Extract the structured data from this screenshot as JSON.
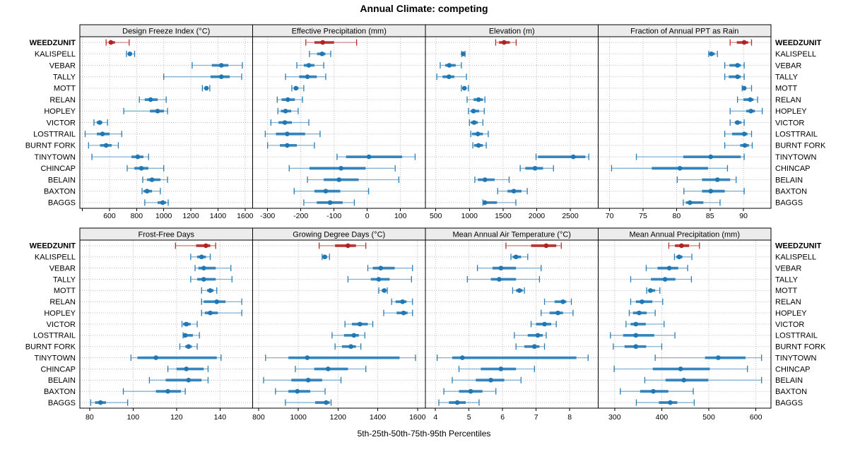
{
  "title": "Annual Climate: competing",
  "caption": "5th-25th-50th-75th-95th Percentiles",
  "highlight_station": "WEEDZUNIT",
  "stations": [
    "WEEDZUNIT",
    "KALISPELL",
    "VEBAR",
    "TALLY",
    "MOTT",
    "RELAN",
    "HOPLEY",
    "VICTOR",
    "LOSTTRAIL",
    "BURNT FORK",
    "TINYTOWN",
    "CHINCAP",
    "BELAIN",
    "BAXTON",
    "BAGGS"
  ],
  "percentile_labels": [
    "5th",
    "25th",
    "50th",
    "75th",
    "95th"
  ],
  "colors": {
    "series": "#1f77b4",
    "highlight": "#b22222",
    "strip_bg": "#ececec",
    "panel_border": "#000000",
    "grid": "#bdbdbd",
    "text": "#000000"
  },
  "chart_data": [
    {
      "type": "dot-whisker",
      "title": "Design Freeze Index (°C)",
      "xlim": [
        381,
        1656
      ],
      "xticks": [
        400,
        600,
        800,
        1000,
        1200,
        1400,
        1600
      ],
      "xtick_labels": [
        "",
        "600",
        "800",
        "1000",
        "1200",
        "1400",
        "1600"
      ],
      "percentiles": [
        [
          575,
          595,
          610,
          640,
          745
        ],
        [
          725,
          740,
          750,
          757,
          785
        ],
        [
          1210,
          1355,
          1425,
          1477,
          1580
        ],
        [
          1000,
          1345,
          1425,
          1487,
          1575
        ],
        [
          1285,
          1303,
          1315,
          1327,
          1340
        ],
        [
          820,
          860,
          903,
          955,
          1018
        ],
        [
          705,
          898,
          955,
          1002,
          1028
        ],
        [
          485,
          505,
          527,
          547,
          585
        ],
        [
          420,
          506,
          548,
          600,
          690
        ],
        [
          445,
          530,
          575,
          616,
          665
        ],
        [
          470,
          762,
          808,
          850,
          888
        ],
        [
          730,
          783,
          835,
          887,
          1000
        ],
        [
          845,
          877,
          913,
          976,
          1028
        ],
        [
          840,
          851,
          877,
          913,
          975
        ],
        [
          860,
          955,
          992,
          1018,
          1033
        ]
      ]
    },
    {
      "type": "dot-whisker",
      "title": "Effective Precipitation (mm)",
      "xlim": [
        -345,
        175
      ],
      "xticks": [
        -300,
        -200,
        -100,
        0,
        100
      ],
      "xtick_labels": [
        "-300",
        "-200",
        "-100",
        "0",
        "100"
      ],
      "percentiles": [
        [
          -185,
          -159,
          -134,
          -100,
          -32
        ],
        [
          -174,
          -151,
          -136,
          -126,
          -110
        ],
        [
          -212,
          -191,
          -176,
          -159,
          -131
        ],
        [
          -246,
          -205,
          -180,
          -152,
          -125
        ],
        [
          -227,
          -220,
          -215,
          -207,
          -191
        ],
        [
          -271,
          -258,
          -239,
          -218,
          -195
        ],
        [
          -269,
          -260,
          -246,
          -229,
          -208
        ],
        [
          -290,
          -267,
          -248,
          -227,
          -176
        ],
        [
          -307,
          -275,
          -241,
          -187,
          -142
        ],
        [
          -300,
          -263,
          -241,
          -212,
          -159
        ],
        [
          -91,
          -64,
          5,
          105,
          144
        ],
        [
          -235,
          -174,
          -79,
          -5,
          84
        ],
        [
          -180,
          -131,
          -85,
          -26,
          95
        ],
        [
          -220,
          -159,
          -125,
          -81,
          4
        ],
        [
          -191,
          -152,
          -112,
          -74,
          -39
        ]
      ]
    },
    {
      "type": "dot-whisker",
      "title": "Elevation (m)",
      "xlim": [
        345,
        2915
      ],
      "xticks": [
        500,
        1000,
        1500,
        2000,
        2500
      ],
      "xtick_labels": [
        "500",
        "1000",
        "1500",
        "2000",
        "2500"
      ],
      "percentiles": [
        [
          1390,
          1440,
          1515,
          1600,
          1695
        ],
        [
          885,
          895,
          905,
          915,
          935
        ],
        [
          565,
          640,
          700,
          795,
          880
        ],
        [
          515,
          600,
          695,
          775,
          955
        ],
        [
          880,
          905,
          925,
          945,
          985
        ],
        [
          965,
          1060,
          1135,
          1200,
          1230
        ],
        [
          985,
          1020,
          1060,
          1145,
          1220
        ],
        [
          1000,
          1020,
          1070,
          1125,
          1200
        ],
        [
          1020,
          1040,
          1125,
          1200,
          1280
        ],
        [
          1050,
          1070,
          1135,
          1200,
          1250
        ],
        [
          1990,
          2020,
          2545,
          2725,
          2775
        ],
        [
          1755,
          1830,
          1975,
          2095,
          2250
        ],
        [
          1080,
          1125,
          1230,
          1375,
          1590
        ],
        [
          1420,
          1565,
          1660,
          1775,
          1860
        ],
        [
          1200,
          1210,
          1230,
          1410,
          1690
        ]
      ]
    },
    {
      "type": "dot-whisker",
      "title": "Fraction of Annual PPT as Rain",
      "xlim": [
        68.3,
        94.1
      ],
      "xticks": [
        70,
        75,
        80,
        85,
        90
      ],
      "xtick_labels": [
        "70",
        "75",
        "80",
        "85",
        "90"
      ],
      "percentiles": [
        [
          88.0,
          89.0,
          90.1,
          90.7,
          91.2
        ],
        [
          84.8,
          85.0,
          85.2,
          85.7,
          86.1
        ],
        [
          87.2,
          87.9,
          89.1,
          89.6,
          90.1
        ],
        [
          87.2,
          87.8,
          89.1,
          89.6,
          90.1
        ],
        [
          89.8,
          90.0,
          90.1,
          90.4,
          91.2
        ],
        [
          89.1,
          90.0,
          91.0,
          91.5,
          92.1
        ],
        [
          88.0,
          90.4,
          91.1,
          91.7,
          92.8
        ],
        [
          88.0,
          88.7,
          89.1,
          89.7,
          90.1
        ],
        [
          87.2,
          88.3,
          90.1,
          90.6,
          91.2
        ],
        [
          87.2,
          89.5,
          90.2,
          90.8,
          91.3
        ],
        [
          74.0,
          81.0,
          85.1,
          89.6,
          90.1
        ],
        [
          70.3,
          76.3,
          80.5,
          84.7,
          87.6
        ],
        [
          80.1,
          83.8,
          86.1,
          88.0,
          88.9
        ],
        [
          81.1,
          83.8,
          85.1,
          87.2,
          90.1
        ],
        [
          81.0,
          81.4,
          82.0,
          84.0,
          86.5
        ]
      ]
    },
    {
      "type": "dot-whisker",
      "title": "Frost-Free Days",
      "xlim": [
        75.5,
        155
      ],
      "xticks": [
        80,
        100,
        120,
        140
      ],
      "xtick_labels": [
        "80",
        "100",
        "120",
        "140"
      ],
      "percentiles": [
        [
          119.5,
          129,
          133.5,
          135.5,
          138
        ],
        [
          126.5,
          129.5,
          131.5,
          133.5,
          135.5
        ],
        [
          128.5,
          130,
          132.5,
          138,
          145
        ],
        [
          126.5,
          129.5,
          132.5,
          138,
          145.5
        ],
        [
          131.5,
          134,
          135.5,
          137,
          138.5
        ],
        [
          131.5,
          132.5,
          138.5,
          142.5,
          150
        ],
        [
          131.5,
          133,
          135.5,
          139,
          150
        ],
        [
          122.5,
          123,
          124.5,
          126.5,
          129.5
        ],
        [
          123,
          123.5,
          124,
          127.5,
          130.5
        ],
        [
          121.5,
          124,
          125.5,
          127,
          129.5
        ],
        [
          99,
          102,
          110.5,
          138.5,
          140.5
        ],
        [
          116,
          120,
          124.5,
          132.5,
          134.5
        ],
        [
          107.5,
          115,
          125.5,
          131.5,
          134.5
        ],
        [
          95.5,
          110.5,
          116,
          122,
          124
        ],
        [
          80.5,
          82.5,
          85,
          87.5,
          97.5
        ]
      ]
    },
    {
      "type": "dot-whisker",
      "title": "Growing Degree Days (°C)",
      "xlim": [
        770,
        1640
      ],
      "xticks": [
        800,
        1000,
        1200,
        1400,
        1600
      ],
      "xtick_labels": [
        "800",
        "1000",
        "1200",
        "1400",
        "1600"
      ],
      "percentiles": [
        [
          1105,
          1185,
          1250,
          1290,
          1340
        ],
        [
          1120,
          1127,
          1133,
          1145,
          1157
        ],
        [
          1350,
          1375,
          1415,
          1485,
          1575
        ],
        [
          1250,
          1365,
          1405,
          1460,
          1570
        ],
        [
          1405,
          1420,
          1433,
          1440,
          1448
        ],
        [
          1470,
          1490,
          1525,
          1545,
          1575
        ],
        [
          1430,
          1495,
          1530,
          1550,
          1575
        ],
        [
          1235,
          1270,
          1310,
          1350,
          1375
        ],
        [
          1170,
          1230,
          1280,
          1305,
          1335
        ],
        [
          1185,
          1220,
          1265,
          1290,
          1315
        ],
        [
          835,
          950,
          1045,
          1510,
          1590
        ],
        [
          985,
          1080,
          1150,
          1250,
          1340
        ],
        [
          825,
          965,
          1050,
          1120,
          1215
        ],
        [
          885,
          950,
          995,
          1060,
          1135
        ],
        [
          935,
          1085,
          1140,
          1158,
          1165
        ]
      ]
    },
    {
      "type": "dot-whisker",
      "title": "Mean Annual Air Temperature (°C)",
      "xlim": [
        3.7,
        8.85
      ],
      "xticks": [
        4,
        5,
        6,
        7,
        8
      ],
      "xtick_labels": [
        "4",
        "5",
        "6",
        "7",
        "8"
      ],
      "percentiles": [
        [
          6.1,
          6.85,
          7.3,
          7.6,
          7.75
        ],
        [
          6.25,
          6.3,
          6.4,
          6.55,
          6.75
        ],
        [
          5.25,
          5.7,
          5.95,
          6.4,
          7.15
        ],
        [
          4.95,
          5.65,
          5.9,
          6.4,
          7.1
        ],
        [
          6.3,
          6.4,
          6.5,
          6.6,
          6.65
        ],
        [
          7.25,
          7.55,
          7.8,
          7.9,
          8.05
        ],
        [
          7.15,
          7.4,
          7.65,
          7.8,
          8.1
        ],
        [
          6.85,
          7.0,
          7.25,
          7.45,
          7.6
        ],
        [
          6.35,
          6.75,
          7.05,
          7.2,
          7.3
        ],
        [
          6.4,
          6.65,
          6.95,
          7.1,
          7.25
        ],
        [
          4.05,
          4.5,
          4.8,
          8.2,
          8.55
        ],
        [
          4.7,
          5.35,
          5.95,
          6.4,
          6.95
        ],
        [
          4.5,
          5.2,
          5.65,
          6.05,
          6.55
        ],
        [
          4.25,
          4.7,
          5.05,
          5.4,
          5.8
        ],
        [
          4.1,
          4.4,
          4.65,
          4.9,
          5.3
        ]
      ]
    },
    {
      "type": "dot-whisker",
      "title": "Mean Annual Precipitation (mm)",
      "xlim": [
        265,
        632
      ],
      "xticks": [
        300,
        400,
        500,
        600
      ],
      "xtick_labels": [
        "300",
        "400",
        "500",
        "600"
      ],
      "percentiles": [
        [
          415,
          428,
          442,
          458,
          480
        ],
        [
          427,
          431,
          437,
          444,
          464
        ],
        [
          367,
          391,
          416,
          435,
          455
        ],
        [
          334,
          377,
          407,
          429,
          463
        ],
        [
          368,
          371,
          376,
          386,
          396
        ],
        [
          334,
          345,
          358,
          380,
          402
        ],
        [
          331,
          339,
          352,
          368,
          386
        ],
        [
          324,
          334,
          345,
          366,
          405
        ],
        [
          291,
          318,
          345,
          384,
          428
        ],
        [
          297,
          321,
          345,
          367,
          400
        ],
        [
          386,
          492,
          520,
          578,
          612
        ],
        [
          299,
          381,
          440,
          502,
          582
        ],
        [
          364,
          408,
          447,
          499,
          612
        ],
        [
          312,
          354,
          382,
          414,
          467
        ],
        [
          346,
          394,
          418,
          433,
          469
        ]
      ]
    }
  ]
}
